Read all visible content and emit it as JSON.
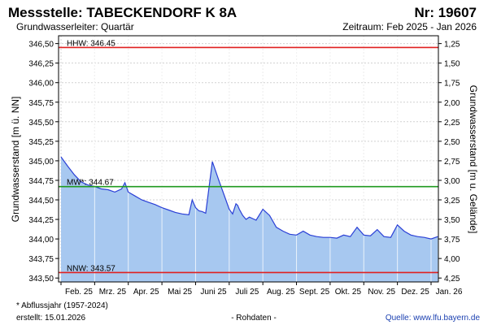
{
  "header": {
    "title": "Messstelle: TABECKENDORF K 8A",
    "number": "Nr: 19607",
    "subtitle": "Grundwasserleiter: Quartär",
    "period": "Zeitraum: Feb 2025 - Jan 2026"
  },
  "footer": {
    "note": "* Abflussjahr (1957-2024)",
    "created": "erstellt:  15.01.2026",
    "rawdata": "- Rohdaten -",
    "source": "Quelle:  www.lfu.bayern.de"
  },
  "colors": {
    "area_fill": "#a7c8f0",
    "line": "#2a3fd6",
    "max_line": "#e02020",
    "mean_line": "#1f9a1f",
    "grid": "#d0d0d0"
  },
  "chart_data": {
    "type": "area",
    "title": "Messstelle: TABECKENDORF K 8A",
    "ylabel": "Grundwasserstand [m ü. NN]",
    "y2label": "Grundwasserstand [m u. Gelände]",
    "ylim": [
      343.45,
      346.6
    ],
    "y_ticks": [
      "343,50",
      "343,75",
      "344,00",
      "344,25",
      "344,50",
      "344,75",
      "345,00",
      "345,25",
      "345,50",
      "345,75",
      "346,00",
      "346,25",
      "346,50"
    ],
    "y2_ticks": [
      "1,25",
      "1,50",
      "1,75",
      "2,00",
      "2,25",
      "2,50",
      "2,75",
      "3,00",
      "3,25",
      "3,50",
      "3,75",
      "4,00",
      "4,25"
    ],
    "x_ticks": [
      "Feb. 25",
      "Mrz. 25",
      "Apr. 25",
      "Mai 25",
      "Juni 25",
      "Juli 25",
      "Aug. 25",
      "Sept. 25",
      "Okt. 25",
      "Nov. 25",
      "Dez. 25",
      "Jan. 26"
    ],
    "grid": true,
    "reference_lines": [
      {
        "label": "HHW: 346.45",
        "value": 346.45,
        "color": "#e02020"
      },
      {
        "label": "MW*: 344.67",
        "value": 344.67,
        "color": "#1f9a1f"
      },
      {
        "label": "NNW: 343.57",
        "value": 343.57,
        "color": "#e02020"
      }
    ],
    "series": [
      {
        "x": [
          0,
          0.2,
          0.4,
          0.6,
          0.8,
          1.0,
          1.2,
          1.4,
          1.6,
          1.8,
          1.9,
          2.0,
          2.2,
          2.4,
          2.6,
          2.8,
          3.0,
          3.2,
          3.4,
          3.6,
          3.8,
          3.9,
          4.0,
          4.1,
          4.2,
          4.3,
          4.5,
          4.7,
          4.9,
          5.0,
          5.1,
          5.2,
          5.25,
          5.3,
          5.4,
          5.5,
          5.6,
          5.8,
          6.0,
          6.2,
          6.4,
          6.6,
          6.8,
          7.0,
          7.2,
          7.4,
          7.6,
          7.8,
          8.0,
          8.2,
          8.4,
          8.6,
          8.8,
          9.0,
          9.2,
          9.4,
          9.6,
          9.8,
          10.0,
          10.2,
          10.4,
          10.6,
          10.8,
          11.0,
          11.2
        ],
        "values": [
          345.05,
          344.93,
          344.82,
          344.73,
          344.69,
          344.67,
          344.64,
          344.63,
          344.6,
          344.64,
          344.72,
          344.6,
          344.55,
          344.5,
          344.47,
          344.44,
          344.4,
          344.37,
          344.34,
          344.32,
          344.31,
          344.5,
          344.4,
          344.36,
          344.35,
          344.33,
          344.99,
          344.74,
          344.5,
          344.38,
          344.32,
          344.45,
          344.43,
          344.38,
          344.3,
          344.25,
          344.28,
          344.24,
          344.38,
          344.3,
          344.15,
          344.1,
          344.06,
          344.05,
          344.1,
          344.05,
          344.03,
          344.02,
          344.02,
          344.01,
          344.05,
          344.03,
          344.15,
          344.05,
          344.04,
          344.12,
          344.03,
          344.02,
          344.18,
          344.1,
          344.05,
          344.03,
          344.02,
          344.0,
          344.03
        ]
      }
    ]
  }
}
